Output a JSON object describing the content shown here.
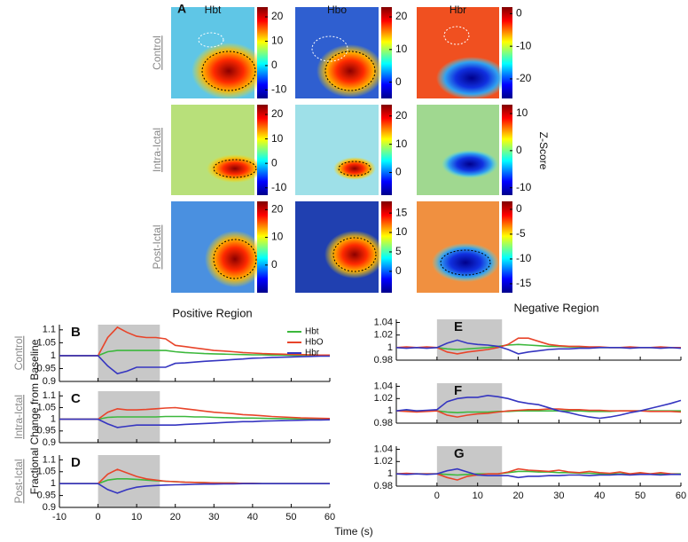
{
  "panel_a": {
    "label": "A",
    "columns": [
      "Hbt",
      "Hbo",
      "Hbr"
    ],
    "rows": [
      "Control",
      "Intra-Ictal",
      "Post-Ictal"
    ],
    "colorbar_label": "Z-Score",
    "colorbars": [
      [
        {
          "clim": [
            -13.5,
            24
          ],
          "ticks": [
            20,
            10,
            0,
            -10
          ]
        },
        {
          "clim": [
            -5,
            23
          ],
          "ticks": [
            20,
            10,
            0
          ]
        },
        {
          "clim": [
            -26,
            2
          ],
          "ticks": [
            0,
            -10,
            -20
          ]
        }
      ],
      [
        {
          "clim": [
            -13,
            24
          ],
          "ticks": [
            20,
            10,
            0,
            -10
          ]
        },
        {
          "clim": [
            -8,
            24
          ],
          "ticks": [
            20,
            10,
            0
          ]
        },
        {
          "clim": [
            -12,
            12.4
          ],
          "ticks": [
            10,
            0,
            -10
          ]
        }
      ],
      [
        {
          "clim": [
            -10,
            23
          ],
          "ticks": [
            20,
            10,
            0
          ]
        },
        {
          "clim": [
            -5.5,
            18
          ],
          "ticks": [
            15,
            10,
            5,
            0
          ]
        },
        {
          "clim": [
            -16.8,
            1.6
          ],
          "ticks": [
            0,
            -5,
            -10,
            -15
          ]
        }
      ]
    ]
  },
  "figure": {
    "x_label": "Time (s)"
  },
  "chart_data": [
    {
      "type": "line",
      "panel": "B",
      "title": "Positive Region",
      "row_label": "Control",
      "legend": "upper right",
      "xtick_labels": false,
      "x": [
        -10,
        -7.5,
        -5,
        -2.5,
        0,
        2.5,
        5,
        7.5,
        10,
        12.5,
        15,
        17.5,
        20,
        22.5,
        25,
        27.5,
        30,
        32.5,
        35,
        37.5,
        40,
        42.5,
        45,
        47.5,
        50,
        52.5,
        55,
        57.5,
        60
      ],
      "xlim": [
        -10,
        60
      ],
      "xticks": [
        -10,
        0,
        10,
        20,
        30,
        40,
        50,
        60
      ],
      "ylim": [
        0.9,
        1.12
      ],
      "yticks": [
        0.9,
        0.95,
        1,
        1.05,
        1.1
      ],
      "shade": [
        0,
        16
      ],
      "series": [
        {
          "name": "Hbt",
          "color": "#3cb83c",
          "values": [
            1,
            1,
            1,
            1,
            1,
            1.015,
            1.02,
            1.02,
            1.02,
            1.02,
            1.02,
            1.02,
            1.015,
            1.012,
            1.01,
            1.008,
            1.007,
            1.006,
            1.005,
            1.004,
            1.003,
            1.003,
            1.002,
            1.002,
            1.001,
            1.001,
            1.001,
            1,
            1
          ]
        },
        {
          "name": "HbO",
          "color": "#e8442a",
          "values": [
            1,
            1,
            1,
            1,
            1,
            1.07,
            1.11,
            1.09,
            1.075,
            1.07,
            1.07,
            1.065,
            1.04,
            1.035,
            1.03,
            1.025,
            1.02,
            1.018,
            1.015,
            1.012,
            1.01,
            1.008,
            1.007,
            1.006,
            1.005,
            1.004,
            1.003,
            1.002,
            1.002
          ]
        },
        {
          "name": "Hbr",
          "color": "#3535c0",
          "values": [
            1,
            1,
            1,
            1,
            1,
            0.96,
            0.93,
            0.94,
            0.955,
            0.955,
            0.955,
            0.955,
            0.97,
            0.972,
            0.975,
            0.978,
            0.98,
            0.982,
            0.985,
            0.987,
            0.99,
            0.991,
            0.993,
            0.994,
            0.995,
            0.996,
            0.997,
            0.998,
            0.998
          ]
        }
      ]
    },
    {
      "type": "line",
      "panel": "C",
      "row_label": "Intra-Ictal",
      "ylabel": "Fractional Change from Baseline",
      "xtick_labels": false,
      "x": [
        -10,
        -7.5,
        -5,
        -2.5,
        0,
        2.5,
        5,
        7.5,
        10,
        12.5,
        15,
        17.5,
        20,
        22.5,
        25,
        27.5,
        30,
        32.5,
        35,
        37.5,
        40,
        42.5,
        45,
        47.5,
        50,
        52.5,
        55,
        57.5,
        60
      ],
      "xlim": [
        -10,
        60
      ],
      "xticks": [
        -10,
        0,
        10,
        20,
        30,
        40,
        50,
        60
      ],
      "ylim": [
        0.9,
        1.12
      ],
      "yticks": [
        0.9,
        0.95,
        1,
        1.05,
        1.1
      ],
      "shade": [
        0,
        16
      ],
      "series": [
        {
          "color": "#3cb83c",
          "values": [
            1,
            1,
            1,
            1,
            1,
            1.008,
            1.01,
            1.01,
            1.01,
            1.01,
            1.01,
            1.012,
            1.012,
            1.012,
            1.01,
            1.01,
            1.008,
            1.007,
            1.006,
            1.005,
            1.005,
            1.004,
            1.003,
            1.003,
            1.002,
            1.002,
            1.001,
            1.001,
            1
          ]
        },
        {
          "color": "#e8442a",
          "values": [
            1,
            1,
            1,
            1,
            1,
            1.03,
            1.045,
            1.04,
            1.04,
            1.042,
            1.045,
            1.048,
            1.05,
            1.045,
            1.04,
            1.035,
            1.03,
            1.027,
            1.024,
            1.02,
            1.018,
            1.015,
            1.012,
            1.01,
            1.008,
            1.006,
            1.005,
            1.004,
            1.003
          ]
        },
        {
          "color": "#3535c0",
          "values": [
            1,
            1,
            1,
            1,
            1,
            0.98,
            0.965,
            0.97,
            0.975,
            0.975,
            0.975,
            0.975,
            0.975,
            0.978,
            0.98,
            0.982,
            0.984,
            0.986,
            0.988,
            0.99,
            0.99,
            0.992,
            0.993,
            0.994,
            0.995,
            0.996,
            0.997,
            0.997,
            0.998
          ]
        }
      ]
    },
    {
      "type": "line",
      "panel": "D",
      "row_label": "Post-Ictal",
      "xtick_labels": true,
      "x": [
        -10,
        -7.5,
        -5,
        -2.5,
        0,
        2.5,
        5,
        7.5,
        10,
        12.5,
        15,
        17.5,
        20,
        22.5,
        25,
        27.5,
        30,
        32.5,
        35,
        37.5,
        40,
        42.5,
        45,
        47.5,
        50,
        52.5,
        55,
        57.5,
        60
      ],
      "xlim": [
        -10,
        60
      ],
      "xticks": [
        -10,
        0,
        10,
        20,
        30,
        40,
        50,
        60
      ],
      "ylim": [
        0.9,
        1.12
      ],
      "yticks": [
        0.9,
        0.95,
        1,
        1.05,
        1.1
      ],
      "shade": [
        0,
        16
      ],
      "series": [
        {
          "color": "#3cb83c",
          "values": [
            1,
            1,
            1,
            1,
            1,
            1.015,
            1.02,
            1.02,
            1.018,
            1.015,
            1.012,
            1.01,
            1.008,
            1.006,
            1.005,
            1.004,
            1.003,
            1.002,
            1.002,
            1.001,
            1.001,
            1,
            1,
            1,
            1,
            1,
            1,
            1,
            1
          ]
        },
        {
          "color": "#e8442a",
          "values": [
            1,
            1,
            1,
            1,
            1,
            1.04,
            1.06,
            1.045,
            1.03,
            1.02,
            1.015,
            1.01,
            1.008,
            1.006,
            1.005,
            1.004,
            1.003,
            1.002,
            1.002,
            1.001,
            1.001,
            1,
            1,
            1,
            1,
            1,
            1,
            1,
            1
          ]
        },
        {
          "color": "#3535c0",
          "values": [
            1,
            1,
            1,
            1,
            1,
            0.975,
            0.96,
            0.975,
            0.985,
            0.99,
            0.992,
            0.994,
            0.995,
            0.996,
            0.997,
            0.998,
            0.998,
            0.999,
            0.999,
            1,
            1,
            1,
            1,
            1,
            1,
            1,
            1,
            1,
            1
          ]
        }
      ]
    },
    {
      "type": "line",
      "panel": "E",
      "title": "Negative Region",
      "xtick_labels": false,
      "x": [
        -10,
        -7.5,
        -5,
        -2.5,
        0,
        2.5,
        5,
        7.5,
        10,
        12.5,
        15,
        17.5,
        20,
        22.5,
        25,
        27.5,
        30,
        32.5,
        35,
        37.5,
        40,
        42.5,
        45,
        47.5,
        50,
        52.5,
        55,
        57.5,
        60
      ],
      "xlim": [
        -10,
        60
      ],
      "xticks": [
        0,
        10,
        20,
        30,
        40,
        50,
        60
      ],
      "ylim": [
        0.98,
        1.045
      ],
      "yticks": [
        0.98,
        1,
        1.02,
        1.04
      ],
      "shade": [
        0,
        16
      ],
      "series": [
        {
          "color": "#3cb83c",
          "values": [
            1,
            1,
            1,
            1,
            1,
            0.998,
            0.997,
            0.998,
            0.999,
            1,
            1.002,
            1.004,
            1.005,
            1.004,
            1.003,
            1.002,
            1.002,
            1.001,
            1.001,
            1,
            1,
            1,
            1,
            1,
            1,
            1,
            1,
            1,
            1
          ]
        },
        {
          "color": "#e8442a",
          "values": [
            1,
            1.001,
            1,
            1.001,
            1,
            0.993,
            0.99,
            0.993,
            0.995,
            0.997,
            1,
            1.005,
            1.015,
            1.015,
            1.01,
            1.005,
            1.003,
            1.002,
            1.002,
            1.001,
            1.001,
            1,
            1,
            1.001,
            1,
            1,
            1.001,
            1,
            1
          ]
        },
        {
          "color": "#3535c0",
          "values": [
            1,
            0.999,
            1,
            0.999,
            1,
            1.007,
            1.012,
            1.007,
            1.005,
            1.004,
            1.002,
            0.997,
            0.99,
            0.993,
            0.995,
            0.997,
            0.998,
            0.998,
            0.999,
            0.999,
            1,
            1,
            1,
            0.999,
            1,
            1,
            0.999,
            1,
            0.999
          ]
        }
      ]
    },
    {
      "type": "line",
      "panel": "F",
      "xtick_labels": false,
      "x": [
        -10,
        -7.5,
        -5,
        -2.5,
        0,
        2.5,
        5,
        7.5,
        10,
        12.5,
        15,
        17.5,
        20,
        22.5,
        25,
        27.5,
        30,
        32.5,
        35,
        37.5,
        40,
        42.5,
        45,
        47.5,
        50,
        52.5,
        55,
        57.5,
        60
      ],
      "xlim": [
        -10,
        60
      ],
      "xticks": [
        0,
        10,
        20,
        30,
        40,
        50,
        60
      ],
      "ylim": [
        0.98,
        1.045
      ],
      "yticks": [
        0.98,
        1,
        1.02,
        1.04
      ],
      "shade": [
        0,
        16
      ],
      "series": [
        {
          "color": "#3cb83c",
          "values": [
            1,
            1,
            1,
            1,
            1,
            0.998,
            0.997,
            0.998,
            0.998,
            0.998,
            0.999,
            0.999,
            1,
            1,
            1,
            1,
            1,
            1,
            1,
            0.999,
            0.999,
            0.999,
            1,
            1,
            1,
            1,
            1,
            1,
            1
          ]
        },
        {
          "color": "#e8442a",
          "values": [
            1,
            0.999,
            0.998,
            0.999,
            1,
            0.993,
            0.99,
            0.993,
            0.995,
            0.996,
            0.998,
            1,
            1.001,
            1.002,
            1.002,
            1.003,
            1.003,
            1.002,
            1.002,
            1.001,
            1.001,
            1,
            1,
            1,
            1,
            0.999,
            0.999,
            0.999,
            0.998
          ]
        },
        {
          "color": "#3535c0",
          "values": [
            1,
            1.002,
            1,
            1.001,
            1.002,
            1.015,
            1.02,
            1.022,
            1.022,
            1.025,
            1.023,
            1.02,
            1.015,
            1.012,
            1.01,
            1.005,
            1,
            0.997,
            0.993,
            0.99,
            0.988,
            0.99,
            0.993,
            0.997,
            1,
            1.004,
            1.008,
            1.012,
            1.017
          ]
        }
      ]
    },
    {
      "type": "line",
      "panel": "G",
      "xtick_labels": true,
      "x": [
        -10,
        -7.5,
        -5,
        -2.5,
        0,
        2.5,
        5,
        7.5,
        10,
        12.5,
        15,
        17.5,
        20,
        22.5,
        25,
        27.5,
        30,
        32.5,
        35,
        37.5,
        40,
        42.5,
        45,
        47.5,
        50,
        52.5,
        55,
        57.5,
        60
      ],
      "xlim": [
        -10,
        60
      ],
      "xticks": [
        0,
        10,
        20,
        30,
        40,
        50,
        60
      ],
      "ylim": [
        0.98,
        1.045
      ],
      "yticks": [
        0.98,
        1,
        1.02,
        1.04
      ],
      "shade": [
        0,
        16
      ],
      "series": [
        {
          "color": "#3cb83c",
          "values": [
            1,
            1,
            1,
            1,
            1,
            0.999,
            0.998,
            0.999,
            1,
            1,
            1,
            1.002,
            1.004,
            1.004,
            1.003,
            1.003,
            1.002,
            1.002,
            1.001,
            1.001,
            1,
            1,
            1,
            1,
            1,
            1,
            1,
            1,
            1
          ]
        },
        {
          "color": "#e8442a",
          "values": [
            1,
            1.001,
            1,
            1,
            1,
            0.994,
            0.99,
            0.996,
            0.998,
            1,
            1,
            1.003,
            1.008,
            1.006,
            1.005,
            1.004,
            1.006,
            1.003,
            1.002,
            1.004,
            1.002,
            1.001,
            1.003,
            1,
            1.002,
            1,
            1.002,
            1,
            0.999
          ]
        },
        {
          "color": "#3535c0",
          "values": [
            1,
            0.999,
            1,
            0.999,
            1,
            1.005,
            1.008,
            1.003,
            0.998,
            0.997,
            0.997,
            0.997,
            0.994,
            0.996,
            0.996,
            0.997,
            0.997,
            0.998,
            0.998,
            0.997,
            0.998,
            0.998,
            0.999,
            0.998,
            0.999,
            0.999,
            0.998,
            0.999,
            0.999
          ]
        }
      ]
    }
  ]
}
